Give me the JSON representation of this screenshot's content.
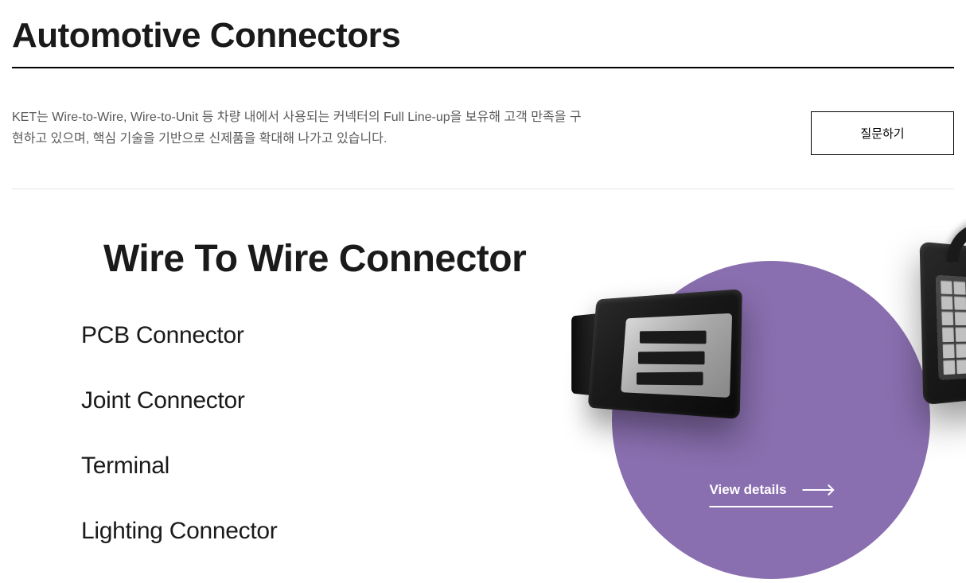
{
  "header": {
    "title": "Automotive Connectors",
    "description": "KET는 Wire-to-Wire, Wire-to-Unit 등 차량 내에서 사용되는 커넥터의 Full Line-up을 보유해 고객 만족을 구현하고 있으며, 핵심 기술을 기반으로 신제품을 확대해 나가고 있습니다.",
    "inquiry_button_label": "질문하기"
  },
  "content": {
    "active_category": "Wire To Wire Connector",
    "categories": [
      "PCB Connector",
      "Joint Connector",
      "Terminal",
      "Lighting Connector"
    ],
    "view_details_label": "View details"
  },
  "style": {
    "title_divider_color": "#000000",
    "section_divider_color": "#e5e5e5",
    "circle_background": "#8a6fb0",
    "text_color": "#1a1a1a",
    "description_color": "#5a5a5a",
    "link_color": "#ffffff"
  }
}
